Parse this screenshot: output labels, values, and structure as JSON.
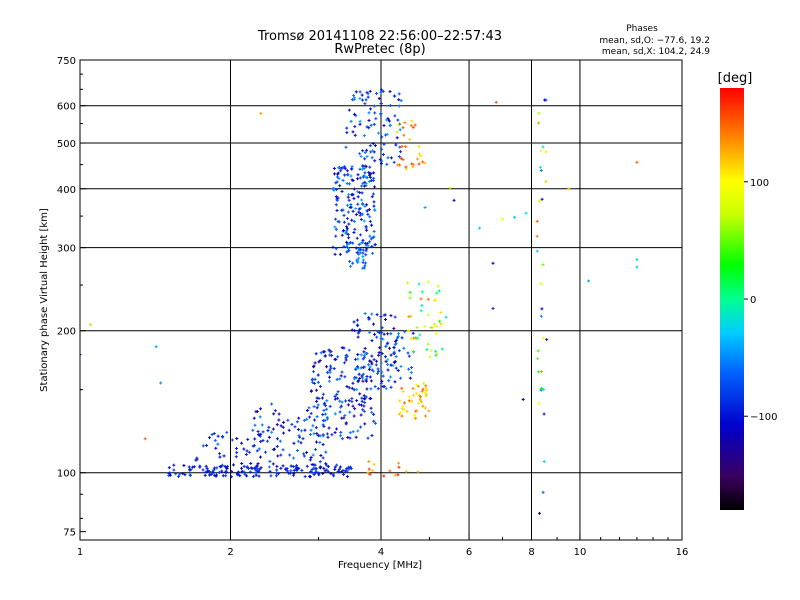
{
  "chart_data": {
    "type": "scatter",
    "title": "Tromsø 20141108 22:56:00–22:57:43",
    "subtitle": "RwPretec (8p)",
    "xlabel": "Frequency [MHz]",
    "ylabel": "Stationary phase Virtual Height [km]",
    "x_scale": "log",
    "y_scale": "log",
    "xlim": [
      1,
      16
    ],
    "ylim": [
      72,
      750
    ],
    "x_ticks": [
      1,
      2,
      4,
      6,
      8,
      10,
      16
    ],
    "x_tick_labels": [
      "1",
      "2",
      "4",
      "6",
      "8",
      "10",
      "16"
    ],
    "y_ticks": [
      75,
      100,
      200,
      300,
      400,
      500,
      600,
      750
    ],
    "y_tick_labels": [
      "75",
      "100",
      "200",
      "300",
      "400",
      "500",
      "600",
      "750"
    ],
    "x_grid": [
      2,
      4,
      6,
      8,
      10
    ],
    "y_grid": [
      100,
      200,
      300,
      400,
      500,
      600
    ],
    "grid": true,
    "stats_title": "Phases",
    "stats_lines": [
      "mean, sd,O: −77.6, 19.2",
      "mean, sd,X: 104.2, 24.9"
    ],
    "colorbar": {
      "label": "[deg]",
      "range": [
        -180,
        180
      ],
      "ticks": [
        100,
        0,
        -100
      ],
      "tick_labels": [
        "100",
        "0",
        "−100"
      ]
    },
    "clusters": [
      {
        "x": [
          1.5,
          3.5
        ],
        "y": [
          98,
          104
        ],
        "n": 160,
        "phase": [
          -115,
          -75
        ]
      },
      {
        "x": [
          1.7,
          2.3
        ],
        "y": [
          100,
          122
        ],
        "n": 45,
        "phase": [
          -120,
          -60
        ]
      },
      {
        "x": [
          2.2,
          3.2
        ],
        "y": [
          102,
          140
        ],
        "n": 110,
        "phase": [
          -130,
          -50
        ]
      },
      {
        "x": [
          2.9,
          3.9
        ],
        "y": [
          118,
          185
        ],
        "n": 170,
        "phase": [
          -135,
          -50
        ]
      },
      {
        "x": [
          3.5,
          4.3
        ],
        "y": [
          150,
          220
        ],
        "n": 90,
        "phase": [
          -140,
          -30
        ]
      },
      {
        "x": [
          3.9,
          4.7
        ],
        "y": [
          158,
          200
        ],
        "n": 40,
        "phase": [
          -120,
          -40
        ]
      },
      {
        "x": [
          4.35,
          5.0
        ],
        "y": [
          130,
          155
        ],
        "n": 45,
        "phase": [
          95,
          150
        ]
      },
      {
        "x": [
          4.5,
          5.4
        ],
        "y": [
          175,
          255
        ],
        "n": 45,
        "phase": [
          -20,
          145
        ]
      },
      {
        "x": [
          3.2,
          3.9
        ],
        "y": [
          290,
          450
        ],
        "n": 190,
        "phase": [
          -130,
          -40
        ]
      },
      {
        "x": [
          3.4,
          4.4
        ],
        "y": [
          450,
          650
        ],
        "n": 100,
        "phase": [
          -120,
          -40
        ]
      },
      {
        "x": [
          3.45,
          3.75
        ],
        "y": [
          270,
          310
        ],
        "n": 25,
        "phase": [
          -80,
          -40
        ]
      },
      {
        "x": [
          4.3,
          4.9
        ],
        "y": [
          430,
          560
        ],
        "n": 28,
        "phase": [
          105,
          160
        ]
      },
      {
        "x": [
          3.6,
          4.9
        ],
        "y": [
          98,
          106
        ],
        "n": 14,
        "phase": [
          110,
          175
        ]
      },
      {
        "x": [
          8.2,
          8.6
        ],
        "y": [
          90,
          620
        ],
        "n": 30,
        "phase": [
          -120,
          160
        ]
      }
    ],
    "points": [
      {
        "x": 1.0,
        "y": 178,
        "phase": -110
      },
      {
        "x": 1.0,
        "y": 150,
        "phase": -100
      },
      {
        "x": 1.05,
        "y": 206,
        "phase": 120
      },
      {
        "x": 1.42,
        "y": 185,
        "phase": -40
      },
      {
        "x": 1.45,
        "y": 155,
        "phase": -50
      },
      {
        "x": 1.35,
        "y": 118,
        "phase": 150
      },
      {
        "x": 2.3,
        "y": 578,
        "phase": 130
      },
      {
        "x": 6.8,
        "y": 610,
        "phase": 155
      },
      {
        "x": 8.5,
        "y": 617,
        "phase": -110
      },
      {
        "x": 6.3,
        "y": 330,
        "phase": -30
      },
      {
        "x": 6.7,
        "y": 278,
        "phase": -110
      },
      {
        "x": 6.7,
        "y": 223,
        "phase": -90
      },
      {
        "x": 7.0,
        "y": 345,
        "phase": 90
      },
      {
        "x": 7.4,
        "y": 348,
        "phase": -30
      },
      {
        "x": 7.8,
        "y": 355,
        "phase": -20
      },
      {
        "x": 8.4,
        "y": 380,
        "phase": -100
      },
      {
        "x": 9.5,
        "y": 400,
        "phase": 120
      },
      {
        "x": 10.4,
        "y": 255,
        "phase": -40
      },
      {
        "x": 13.0,
        "y": 283,
        "phase": -30
      },
      {
        "x": 13.0,
        "y": 273,
        "phase": -30
      },
      {
        "x": 13.0,
        "y": 455,
        "phase": 150
      },
      {
        "x": 7.7,
        "y": 143,
        "phase": -110
      },
      {
        "x": 5.6,
        "y": 378,
        "phase": -110
      },
      {
        "x": 5.5,
        "y": 402,
        "phase": 90
      },
      {
        "x": 4.9,
        "y": 365,
        "phase": -40
      },
      {
        "x": 8.3,
        "y": 82,
        "phase": -110
      }
    ]
  }
}
